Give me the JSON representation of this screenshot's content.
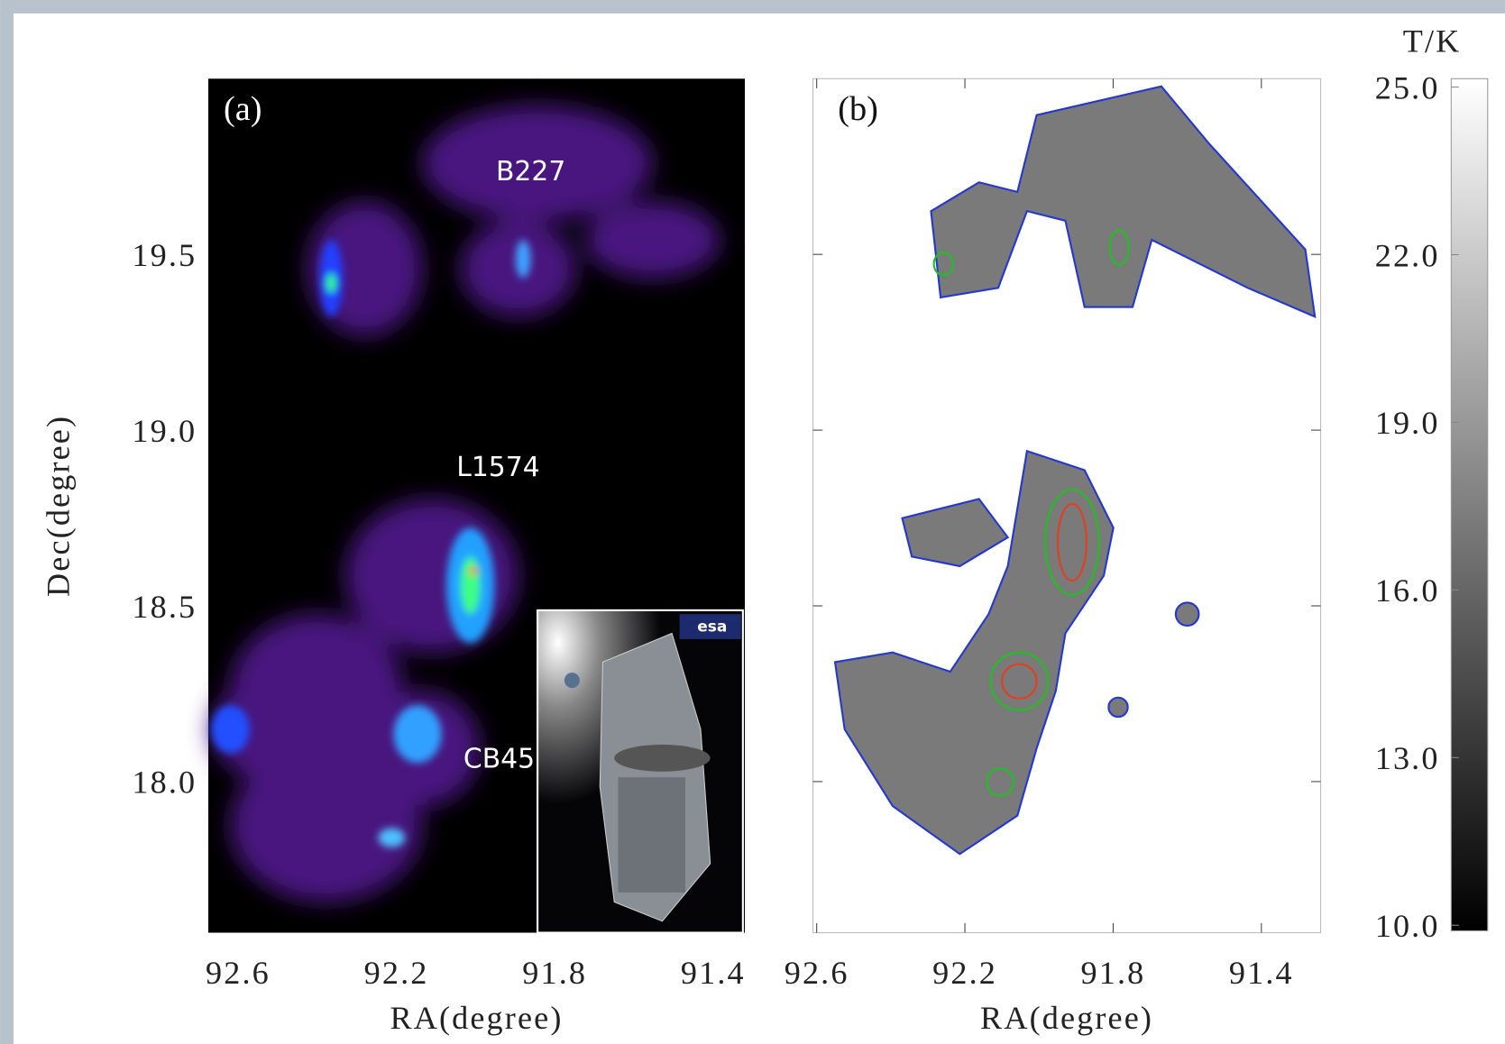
{
  "chart_data": [
    {
      "type": "image",
      "panel_label": "(a)",
      "xlabel": "RA(degree)",
      "ylabel": "Dec(degree)",
      "xlim": [
        92.675,
        91.32
      ],
      "ylim": [
        17.57,
        20.0
      ],
      "xticks": [
        92.6,
        92.2,
        91.8,
        91.4
      ],
      "yticks": [
        {
          "value": 19.5,
          "label": "19.5"
        },
        {
          "value": 19,
          "label": "19.0"
        },
        {
          "value": 18.5,
          "label": "18.5"
        },
        {
          "value": 18,
          "label": "18.0"
        }
      ],
      "annotations": [
        "B227",
        "L1574",
        "CB45"
      ],
      "inset_logo": "esa"
    },
    {
      "type": "image",
      "panel_label": "(b)",
      "xlabel": "RA(degree)",
      "xlim": [
        92.61,
        91.24
      ],
      "ylim": [
        17.57,
        20.0
      ],
      "xticks": [
        92.6,
        92.2,
        91.8,
        91.4
      ],
      "yticks": [
        {
          "value": 19.5,
          "label": "19.5"
        },
        {
          "value": 19,
          "label": "19.0"
        },
        {
          "value": 18.5,
          "label": "18.5"
        },
        {
          "value": 18,
          "label": "18.0"
        }
      ],
      "colorbar": {
        "title": "T/K",
        "lim": [
          9.9,
          25.15
        ],
        "ticks": [
          {
            "value": 25,
            "label": "25.0"
          },
          {
            "value": 22,
            "label": "22.0"
          },
          {
            "value": 19,
            "label": "19.0"
          },
          {
            "value": 16,
            "label": "16.0"
          },
          {
            "value": 13,
            "label": "13.0"
          },
          {
            "value": 10,
            "label": "10.0"
          }
        ]
      }
    }
  ]
}
